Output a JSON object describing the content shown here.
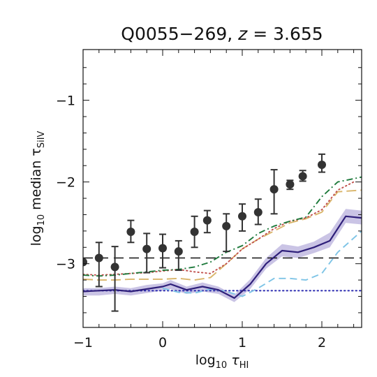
{
  "chart_data": {
    "type": "line",
    "title": "Q0055−269, z = 3.655",
    "title_parts": {
      "name": "Q0055−269, ",
      "z_symbol": "z",
      "equals": " = 3.655"
    },
    "xlabel": "log10 τHI",
    "ylabel": "log10 median τSiIV",
    "xlabel_parts": {
      "log": "log",
      "base": "10",
      "tau": " τ",
      "sub": "HI"
    },
    "ylabel_parts": {
      "prefix": "log",
      "base": "10",
      "mid": " median τ",
      "sub": "SiIV"
    },
    "xlim": [
      -1.0,
      2.5
    ],
    "ylim": [
      -3.78,
      -0.38
    ],
    "x_ticks": [
      -1,
      0,
      1,
      2
    ],
    "x_tick_labels": [
      "−1",
      "0",
      "1",
      "2"
    ],
    "y_ticks": [
      -3,
      -2,
      -1
    ],
    "y_tick_labels": [
      "−3",
      "−2",
      "−1"
    ],
    "grid": false,
    "legend": "none",
    "reference_lines": [
      {
        "style": "dashed",
        "color": "#111111",
        "y": -2.93
      },
      {
        "style": "dotted",
        "color": "#2b2bb0",
        "y": -3.33
      }
    ],
    "data_points": {
      "color": "#333333",
      "points": [
        {
          "x": -1.0,
          "y": -2.98,
          "err_lo": 0.0,
          "err_hi": 0.0
        },
        {
          "x": -0.8,
          "y": -2.93,
          "err_lo": 0.35,
          "err_hi": 0.19
        },
        {
          "x": -0.6,
          "y": -3.04,
          "err_lo": 0.54,
          "err_hi": 0.25
        },
        {
          "x": -0.4,
          "y": -2.61,
          "err_lo": 0.13,
          "err_hi": 0.14
        },
        {
          "x": -0.2,
          "y": -2.82,
          "err_lo": 0.29,
          "err_hi": 0.19
        },
        {
          "x": 0.0,
          "y": -2.81,
          "err_lo": 0.24,
          "err_hi": 0.17
        },
        {
          "x": 0.2,
          "y": -2.85,
          "err_lo": 0.23,
          "err_hi": 0.13
        },
        {
          "x": 0.4,
          "y": -2.61,
          "err_lo": 0.19,
          "err_hi": 0.19
        },
        {
          "x": 0.56,
          "y": -2.47,
          "err_lo": 0.15,
          "err_hi": 0.12
        },
        {
          "x": 0.8,
          "y": -2.54,
          "err_lo": 0.31,
          "err_hi": 0.15
        },
        {
          "x": 1.0,
          "y": -2.42,
          "err_lo": 0.18,
          "err_hi": 0.15
        },
        {
          "x": 1.2,
          "y": -2.37,
          "err_lo": 0.15,
          "err_hi": 0.16
        },
        {
          "x": 1.4,
          "y": -2.09,
          "err_lo": 0.3,
          "err_hi": 0.24
        },
        {
          "x": 1.6,
          "y": -2.03,
          "err_lo": 0.06,
          "err_hi": 0.05
        },
        {
          "x": 1.76,
          "y": -1.93,
          "err_lo": 0.06,
          "err_hi": 0.07
        },
        {
          "x": 2.0,
          "y": -1.79,
          "err_lo": 0.09,
          "err_hi": 0.13
        }
      ]
    },
    "series": [
      {
        "color": "#2e1f7a",
        "style": "solid",
        "band_color": "#b8b0dc",
        "x": [
          -1.0,
          -0.8,
          -0.6,
          -0.4,
          -0.2,
          0.0,
          0.1,
          0.3,
          0.5,
          0.7,
          0.9,
          1.1,
          1.3,
          1.5,
          1.7,
          1.9,
          2.1,
          2.3,
          2.5
        ],
        "values": [
          -3.34,
          -3.33,
          -3.32,
          -3.34,
          -3.31,
          -3.28,
          -3.25,
          -3.32,
          -3.28,
          -3.32,
          -3.42,
          -3.25,
          -3.0,
          -2.84,
          -2.86,
          -2.8,
          -2.72,
          -2.42,
          -2.44
        ],
        "band_lo": [
          -3.39,
          -3.39,
          -3.37,
          -3.39,
          -3.36,
          -3.33,
          -3.31,
          -3.37,
          -3.34,
          -3.37,
          -3.47,
          -3.31,
          -3.06,
          -2.91,
          -2.93,
          -2.87,
          -2.8,
          -2.5,
          -2.52
        ],
        "band_hi": [
          -3.3,
          -3.3,
          -3.28,
          -3.3,
          -3.26,
          -3.24,
          -3.2,
          -3.28,
          -3.23,
          -3.28,
          -3.38,
          -3.19,
          -2.93,
          -2.76,
          -2.79,
          -2.73,
          -2.62,
          -2.33,
          -2.35
        ]
      },
      {
        "color": "#1e7a3c",
        "style": "dashdot",
        "x": [
          -1.0,
          -0.8,
          -0.6,
          -0.4,
          -0.2,
          0.0,
          0.2,
          0.4,
          0.6,
          0.8,
          1.0,
          1.2,
          1.4,
          1.6,
          1.8,
          2.0,
          2.2,
          2.5
        ],
        "values": [
          -3.14,
          -3.15,
          -3.14,
          -3.12,
          -3.1,
          -3.08,
          -3.07,
          -3.04,
          -2.98,
          -2.86,
          -2.78,
          -2.63,
          -2.54,
          -2.48,
          -2.43,
          -2.18,
          -2.0,
          -1.94
        ]
      },
      {
        "color": "#c0504d",
        "style": "dotted",
        "x": [
          -1.0,
          -0.8,
          -0.6,
          -0.4,
          -0.2,
          0.0,
          0.2,
          0.4,
          0.6,
          0.8,
          1.0,
          1.2,
          1.4,
          1.6,
          1.8,
          2.0,
          2.2,
          2.4
        ],
        "values": [
          -3.13,
          -3.14,
          -3.13,
          -3.12,
          -3.11,
          -3.09,
          -3.07,
          -3.1,
          -3.12,
          -3.0,
          -2.82,
          -2.7,
          -2.57,
          -2.48,
          -2.44,
          -2.34,
          -2.1,
          -2.0
        ]
      },
      {
        "color": "#d9b56a",
        "style": "longdash",
        "x": [
          -1.0,
          -0.8,
          -0.6,
          -0.4,
          -0.2,
          0.0,
          0.2,
          0.4,
          0.6,
          0.8,
          1.0,
          1.2,
          1.4,
          1.6,
          1.8,
          2.0,
          2.2,
          2.5
        ],
        "values": [
          -3.19,
          -3.2,
          -3.2,
          -3.19,
          -3.19,
          -3.19,
          -3.18,
          -3.2,
          -3.17,
          -3.0,
          -2.82,
          -2.7,
          -2.6,
          -2.5,
          -2.45,
          -2.37,
          -2.12,
          -2.1
        ]
      },
      {
        "color": "#7ec4e6",
        "style": "dashed",
        "x": [
          0.0,
          0.2,
          0.4,
          0.6,
          0.8,
          1.0,
          1.2,
          1.4,
          1.6,
          1.8,
          2.0,
          2.2,
          2.5
        ],
        "values": [
          -3.3,
          -3.35,
          -3.36,
          -3.31,
          -3.34,
          -3.4,
          -3.3,
          -3.18,
          -3.18,
          -3.2,
          -3.12,
          -2.86,
          -2.6
        ]
      }
    ]
  }
}
